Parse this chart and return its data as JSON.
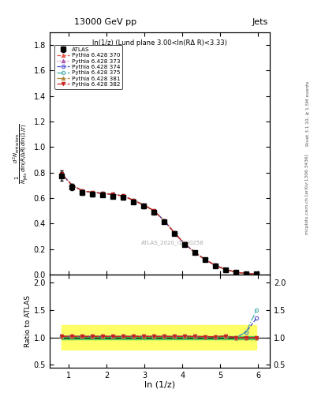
{
  "title_top": "13000 GeV pp",
  "title_right": "Jets",
  "subplot_title": "ln(1/z) (Lund plane 3.00<ln(RΔ R)<3.33)",
  "ylabel_main": "$\\frac{1}{N_{jets}}\\frac{d^2 N_{emissions}}{d\\ln(R/\\Delta R)\\,d\\ln(1/z)}$",
  "ylabel_ratio": "Ratio to ATLAS",
  "xlabel": "ln (1/z)",
  "right_label_top": "Rivet 3.1.10, ≥ 1.5M events",
  "right_label_bot": "mcplots.cern.ch [arXiv:1306.3436]",
  "watermark": "ATLAS_2020_I1790258",
  "x_data": [
    0.82,
    1.09,
    1.36,
    1.63,
    1.9,
    2.17,
    2.44,
    2.71,
    2.98,
    3.25,
    3.52,
    3.79,
    4.06,
    4.33,
    4.6,
    4.87,
    5.14,
    5.41,
    5.68,
    5.95
  ],
  "atlas_y": [
    0.775,
    0.685,
    0.645,
    0.63,
    0.625,
    0.615,
    0.605,
    0.57,
    0.535,
    0.49,
    0.415,
    0.32,
    0.235,
    0.17,
    0.115,
    0.07,
    0.038,
    0.018,
    0.008,
    0.003
  ],
  "atlas_err": [
    0.04,
    0.025,
    0.018,
    0.016,
    0.015,
    0.015,
    0.015,
    0.014,
    0.013,
    0.012,
    0.012,
    0.01,
    0.009,
    0.008,
    0.007,
    0.006,
    0.004,
    0.003,
    0.002,
    0.001
  ],
  "pythia_370": [
    0.79,
    0.7,
    0.658,
    0.643,
    0.638,
    0.628,
    0.617,
    0.582,
    0.546,
    0.5,
    0.423,
    0.326,
    0.24,
    0.173,
    0.117,
    0.071,
    0.039,
    0.018,
    0.008,
    0.003
  ],
  "pythia_373": [
    0.79,
    0.7,
    0.658,
    0.643,
    0.638,
    0.628,
    0.617,
    0.582,
    0.546,
    0.5,
    0.423,
    0.326,
    0.24,
    0.173,
    0.117,
    0.071,
    0.039,
    0.018,
    0.008,
    0.003
  ],
  "pythia_374": [
    0.79,
    0.7,
    0.658,
    0.643,
    0.638,
    0.628,
    0.617,
    0.582,
    0.546,
    0.5,
    0.423,
    0.326,
    0.24,
    0.173,
    0.117,
    0.071,
    0.039,
    0.018,
    0.008,
    0.004
  ],
  "pythia_375": [
    0.79,
    0.7,
    0.658,
    0.643,
    0.638,
    0.628,
    0.617,
    0.582,
    0.546,
    0.5,
    0.423,
    0.326,
    0.24,
    0.173,
    0.117,
    0.071,
    0.039,
    0.018,
    0.009,
    0.005
  ],
  "pythia_381": [
    0.79,
    0.7,
    0.658,
    0.643,
    0.638,
    0.628,
    0.617,
    0.582,
    0.546,
    0.5,
    0.423,
    0.326,
    0.24,
    0.173,
    0.117,
    0.071,
    0.039,
    0.018,
    0.008,
    0.003
  ],
  "pythia_382": [
    0.79,
    0.7,
    0.658,
    0.643,
    0.638,
    0.628,
    0.617,
    0.582,
    0.546,
    0.5,
    0.423,
    0.326,
    0.24,
    0.173,
    0.117,
    0.071,
    0.039,
    0.018,
    0.008,
    0.003
  ],
  "colors_370": "#e8534a",
  "colors_373": "#b05ab0",
  "colors_374": "#4444cc",
  "colors_375": "#44aaaa",
  "colors_381": "#b08840",
  "colors_382": "#cc2222",
  "ls_370": "--",
  "ls_373": ":",
  "ls_374": "--",
  "ls_375": "-.",
  "ls_381": "-.",
  "ls_382": "-.",
  "mk_370": "^",
  "mk_373": "^",
  "mk_374": "o",
  "mk_375": "o",
  "mk_381": "^",
  "mk_382": "v",
  "ratio_370": [
    1.02,
    1.022,
    1.02,
    1.02,
    1.021,
    1.02,
    1.019,
    1.02,
    1.02,
    1.02,
    1.019,
    1.019,
    1.021,
    1.018,
    1.017,
    1.014,
    1.026,
    1.0,
    1.0,
    1.0
  ],
  "ratio_373": [
    1.02,
    1.022,
    1.02,
    1.02,
    1.021,
    1.02,
    1.019,
    1.02,
    1.02,
    1.02,
    1.019,
    1.019,
    1.021,
    1.018,
    1.017,
    1.014,
    1.026,
    1.0,
    1.0,
    1.0
  ],
  "ratio_374": [
    1.02,
    1.022,
    1.02,
    1.02,
    1.021,
    1.02,
    1.019,
    1.02,
    1.02,
    1.02,
    1.019,
    1.019,
    1.021,
    1.018,
    1.017,
    1.014,
    1.026,
    1.0,
    1.1,
    1.35
  ],
  "ratio_375": [
    1.02,
    1.022,
    1.02,
    1.02,
    1.021,
    1.02,
    1.019,
    1.02,
    1.02,
    1.02,
    1.019,
    1.019,
    1.021,
    1.018,
    1.017,
    1.014,
    1.026,
    1.0,
    1.1,
    1.5
  ],
  "ratio_381": [
    1.02,
    1.022,
    1.02,
    1.02,
    1.021,
    1.02,
    1.019,
    1.02,
    1.02,
    1.02,
    1.019,
    1.019,
    1.021,
    1.018,
    1.017,
    1.014,
    1.026,
    1.0,
    1.0,
    1.0
  ],
  "ratio_382": [
    1.02,
    1.022,
    1.02,
    1.02,
    1.021,
    1.02,
    1.019,
    1.02,
    1.02,
    1.02,
    1.019,
    1.019,
    1.021,
    1.018,
    1.017,
    1.014,
    1.026,
    1.0,
    1.0,
    1.0
  ],
  "green_lo": 0.97,
  "green_hi": 1.03,
  "yellow_lo": 0.78,
  "yellow_hi": 1.22,
  "main_ylim": [
    0.0,
    1.9
  ],
  "ratio_ylim": [
    0.45,
    2.15
  ],
  "xlim": [
    0.5,
    6.3
  ],
  "main_yticks": [
    0.0,
    0.2,
    0.4,
    0.6,
    0.8,
    1.0,
    1.2,
    1.4,
    1.6,
    1.8
  ],
  "ratio_yticks": [
    0.5,
    1.0,
    1.5,
    2.0
  ],
  "xticks": [
    1,
    2,
    3,
    4,
    5,
    6
  ]
}
